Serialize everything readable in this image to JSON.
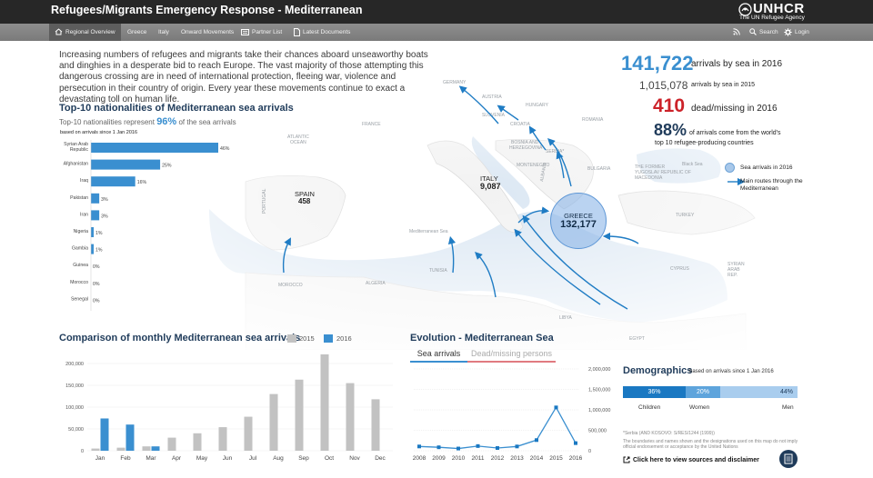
{
  "header": {
    "title": "Refugees/Migrants Emergency Response - Mediterranean",
    "brand_name": "UNHCR",
    "brand_tagline": "The UN Refugee Agency"
  },
  "nav": {
    "items": [
      {
        "label": "Regional Overview",
        "icon": "home-icon",
        "active": true
      },
      {
        "label": "Greece"
      },
      {
        "label": "Italy"
      },
      {
        "label": "Onward Movements"
      },
      {
        "label": "Partner List",
        "icon": "list-icon"
      },
      {
        "label": "Latest Documents",
        "icon": "document-icon"
      }
    ],
    "right": [
      {
        "label": "",
        "icon": "rss-icon"
      },
      {
        "label": "Search",
        "icon": "search-icon"
      },
      {
        "label": "Login",
        "icon": "gear-icon"
      }
    ]
  },
  "intro": "Increasing numbers of refugees and migrants take their chances aboard unseaworthy boats and dinghies in a desperate bid to reach Europe. The vast majority of those attempting this dangerous crossing are in need of international protection, fleeing war, violence and persecution in their country of origin. Every year these movements continue to exact a devastating toll on human life.",
  "stats": {
    "arrivals_2016": "141,722",
    "arrivals_2016_label": "arrivals by sea in 2016",
    "arrivals_2015": "1,015,078",
    "arrivals_2015_label": "arrivals by sea in 2015",
    "dead_2016": "410",
    "dead_2016_label": "dead/missing in 2016",
    "top10_pct": "88%",
    "top10_label_1": "of arrivals come from the world's",
    "top10_label_2": "top 10 refugee-producing countries"
  },
  "map": {
    "legend_bubble": "Sea arrivals  in  2016",
    "legend_route": "Main routes through the Mediterranean",
    "greece_name": "GREECE",
    "greece_value": "132,177",
    "italy_name": "ITALY",
    "italy_value": "9,087",
    "spain_name": "SPAIN",
    "spain_value": "458",
    "labels": [
      "GERMANY",
      "AUSTRIA",
      "HUNGARY",
      "FRANCE",
      "ROMANIA",
      "SLOVENIA",
      "CROATIA",
      "SERBIA",
      "BOSNIA AND HERZEGOVINA",
      "MONTENEGRO",
      "BULGARIA",
      "THE FORMER YUGOSLAV REPUBLIC OF MACEDONIA",
      "ALBANIA",
      "Black Sea",
      "TURKEY",
      "PORTUGAL",
      "ATLANTIC OCEAN",
      "Mediterranean Sea",
      "TUNISIA",
      "ALGERIA",
      "MOROCCO",
      "CYPRUS",
      "SYRIAN ARAB REP.",
      "LIBYA",
      "EGYPT",
      "Sea"
    ]
  },
  "top10": {
    "title": "Top-10 nationalities of Mediterranean sea arrivals",
    "subtitle_pre": "Top-10 nationalities represent",
    "subtitle_pct": "96%",
    "subtitle_post": "of the sea arrivals",
    "note": "based on arrivals since 1 Jan 2016"
  },
  "monthly": {
    "title": "Comparison of monthly Mediterranean sea arrivals",
    "legend_2015": "2015",
    "legend_2016": "2016",
    "color_2015": "#c2c2c2",
    "color_2016": "#3a8fd0"
  },
  "evolution": {
    "title": "Evolution - Mediterranean Sea",
    "tab_arrivals": "Sea arrivals",
    "tab_dead": "Dead/missing persons"
  },
  "demographics": {
    "title": "Demographics",
    "note": "based on arrivals since 1 Jan 2016",
    "segments": [
      {
        "label": "Children",
        "value": "36%",
        "color": "#1a78c2"
      },
      {
        "label": "Women",
        "value": "20%",
        "color": "#5ea4dc"
      },
      {
        "label": "Men",
        "value": "44%",
        "color": "#a9cdee"
      }
    ]
  },
  "footer": {
    "footnote_1": "*Serbia (AND KOSOVO: S/RES/1244 (1999))",
    "footnote_2": "The boundaries and names shown and the designations used on this map do not imply official endorsement or acceptance by the United Nations",
    "sources_link": "Click here to view sources and disclaimer"
  },
  "chart_data": [
    {
      "type": "bar",
      "orientation": "horizontal",
      "title": "Top-10 nationalities of Mediterranean sea arrivals",
      "categories": [
        "Syrian Arab Republic",
        "Afghanistan",
        "Iraq",
        "Pakistan",
        "Iran",
        "Nigeria",
        "Gambia",
        "Guinea",
        "Morocco",
        "Senegal"
      ],
      "values": [
        46,
        25,
        16,
        3,
        3,
        1,
        1,
        0,
        0,
        0
      ],
      "value_labels": [
        "46%",
        "25%",
        "16%",
        "3%",
        "3%",
        "1%",
        "1%",
        "0%",
        "0%",
        "0%"
      ],
      "color": "#3a8fd0"
    },
    {
      "type": "bar",
      "title": "Comparison of monthly Mediterranean sea arrivals",
      "categories": [
        "Jan",
        "Feb",
        "Mar",
        "Apr",
        "May",
        "Jun",
        "Jul",
        "Aug",
        "Sep",
        "Oct",
        "Nov",
        "Dec"
      ],
      "series": [
        {
          "name": "2015",
          "values": [
            5000,
            7000,
            10000,
            30000,
            40000,
            54000,
            78000,
            130000,
            163000,
            221000,
            155000,
            118000
          ]
        },
        {
          "name": "2016",
          "values": [
            74000,
            60000,
            10000,
            null,
            null,
            null,
            null,
            null,
            null,
            null,
            null,
            null
          ]
        }
      ],
      "yticks": [
        "0",
        "50,000",
        "100,000",
        "150,000",
        "200,000"
      ],
      "ylim": [
        0,
        225000
      ]
    },
    {
      "type": "line",
      "title": "Evolution - Mediterranean Sea",
      "x": [
        "2008",
        "2009",
        "2010",
        "2011",
        "2012",
        "2013",
        "2014",
        "2015",
        "2016"
      ],
      "series": [
        {
          "name": "Sea arrivals",
          "values": [
            60000,
            40000,
            10000,
            70000,
            22000,
            60000,
            216000,
            1015078,
            141722
          ]
        }
      ],
      "yticks": [
        "0",
        "500,000",
        "1,000,000",
        "1,500,000",
        "2,000,000"
      ],
      "ylim": [
        0,
        2000000
      ]
    }
  ]
}
